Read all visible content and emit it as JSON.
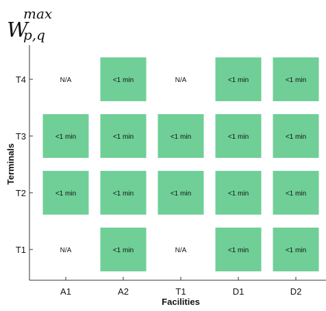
{
  "title": {
    "main": "W",
    "sub": "p,q",
    "sup": "max"
  },
  "chart_data": {
    "type": "heatmap",
    "xlabel": "Facilities",
    "ylabel": "Terminals",
    "x_categories": [
      "A1",
      "A2",
      "T1",
      "D1",
      "D2"
    ],
    "y_categories": [
      "T4",
      "T3",
      "T2",
      "T1"
    ],
    "cells": [
      [
        "N/A",
        "<1 min",
        "N/A",
        "<1 min",
        "<1 min"
      ],
      [
        "<1 min",
        "<1 min",
        "<1 min",
        "<1 min",
        "<1 min"
      ],
      [
        "<1 min",
        "<1 min",
        "<1 min",
        "<1 min",
        "<1 min"
      ],
      [
        "N/A",
        "<1 min",
        "N/A",
        "<1 min",
        "<1 min"
      ]
    ],
    "fill_color": "#6fcf97",
    "na_value": "N/A",
    "grid": false
  }
}
